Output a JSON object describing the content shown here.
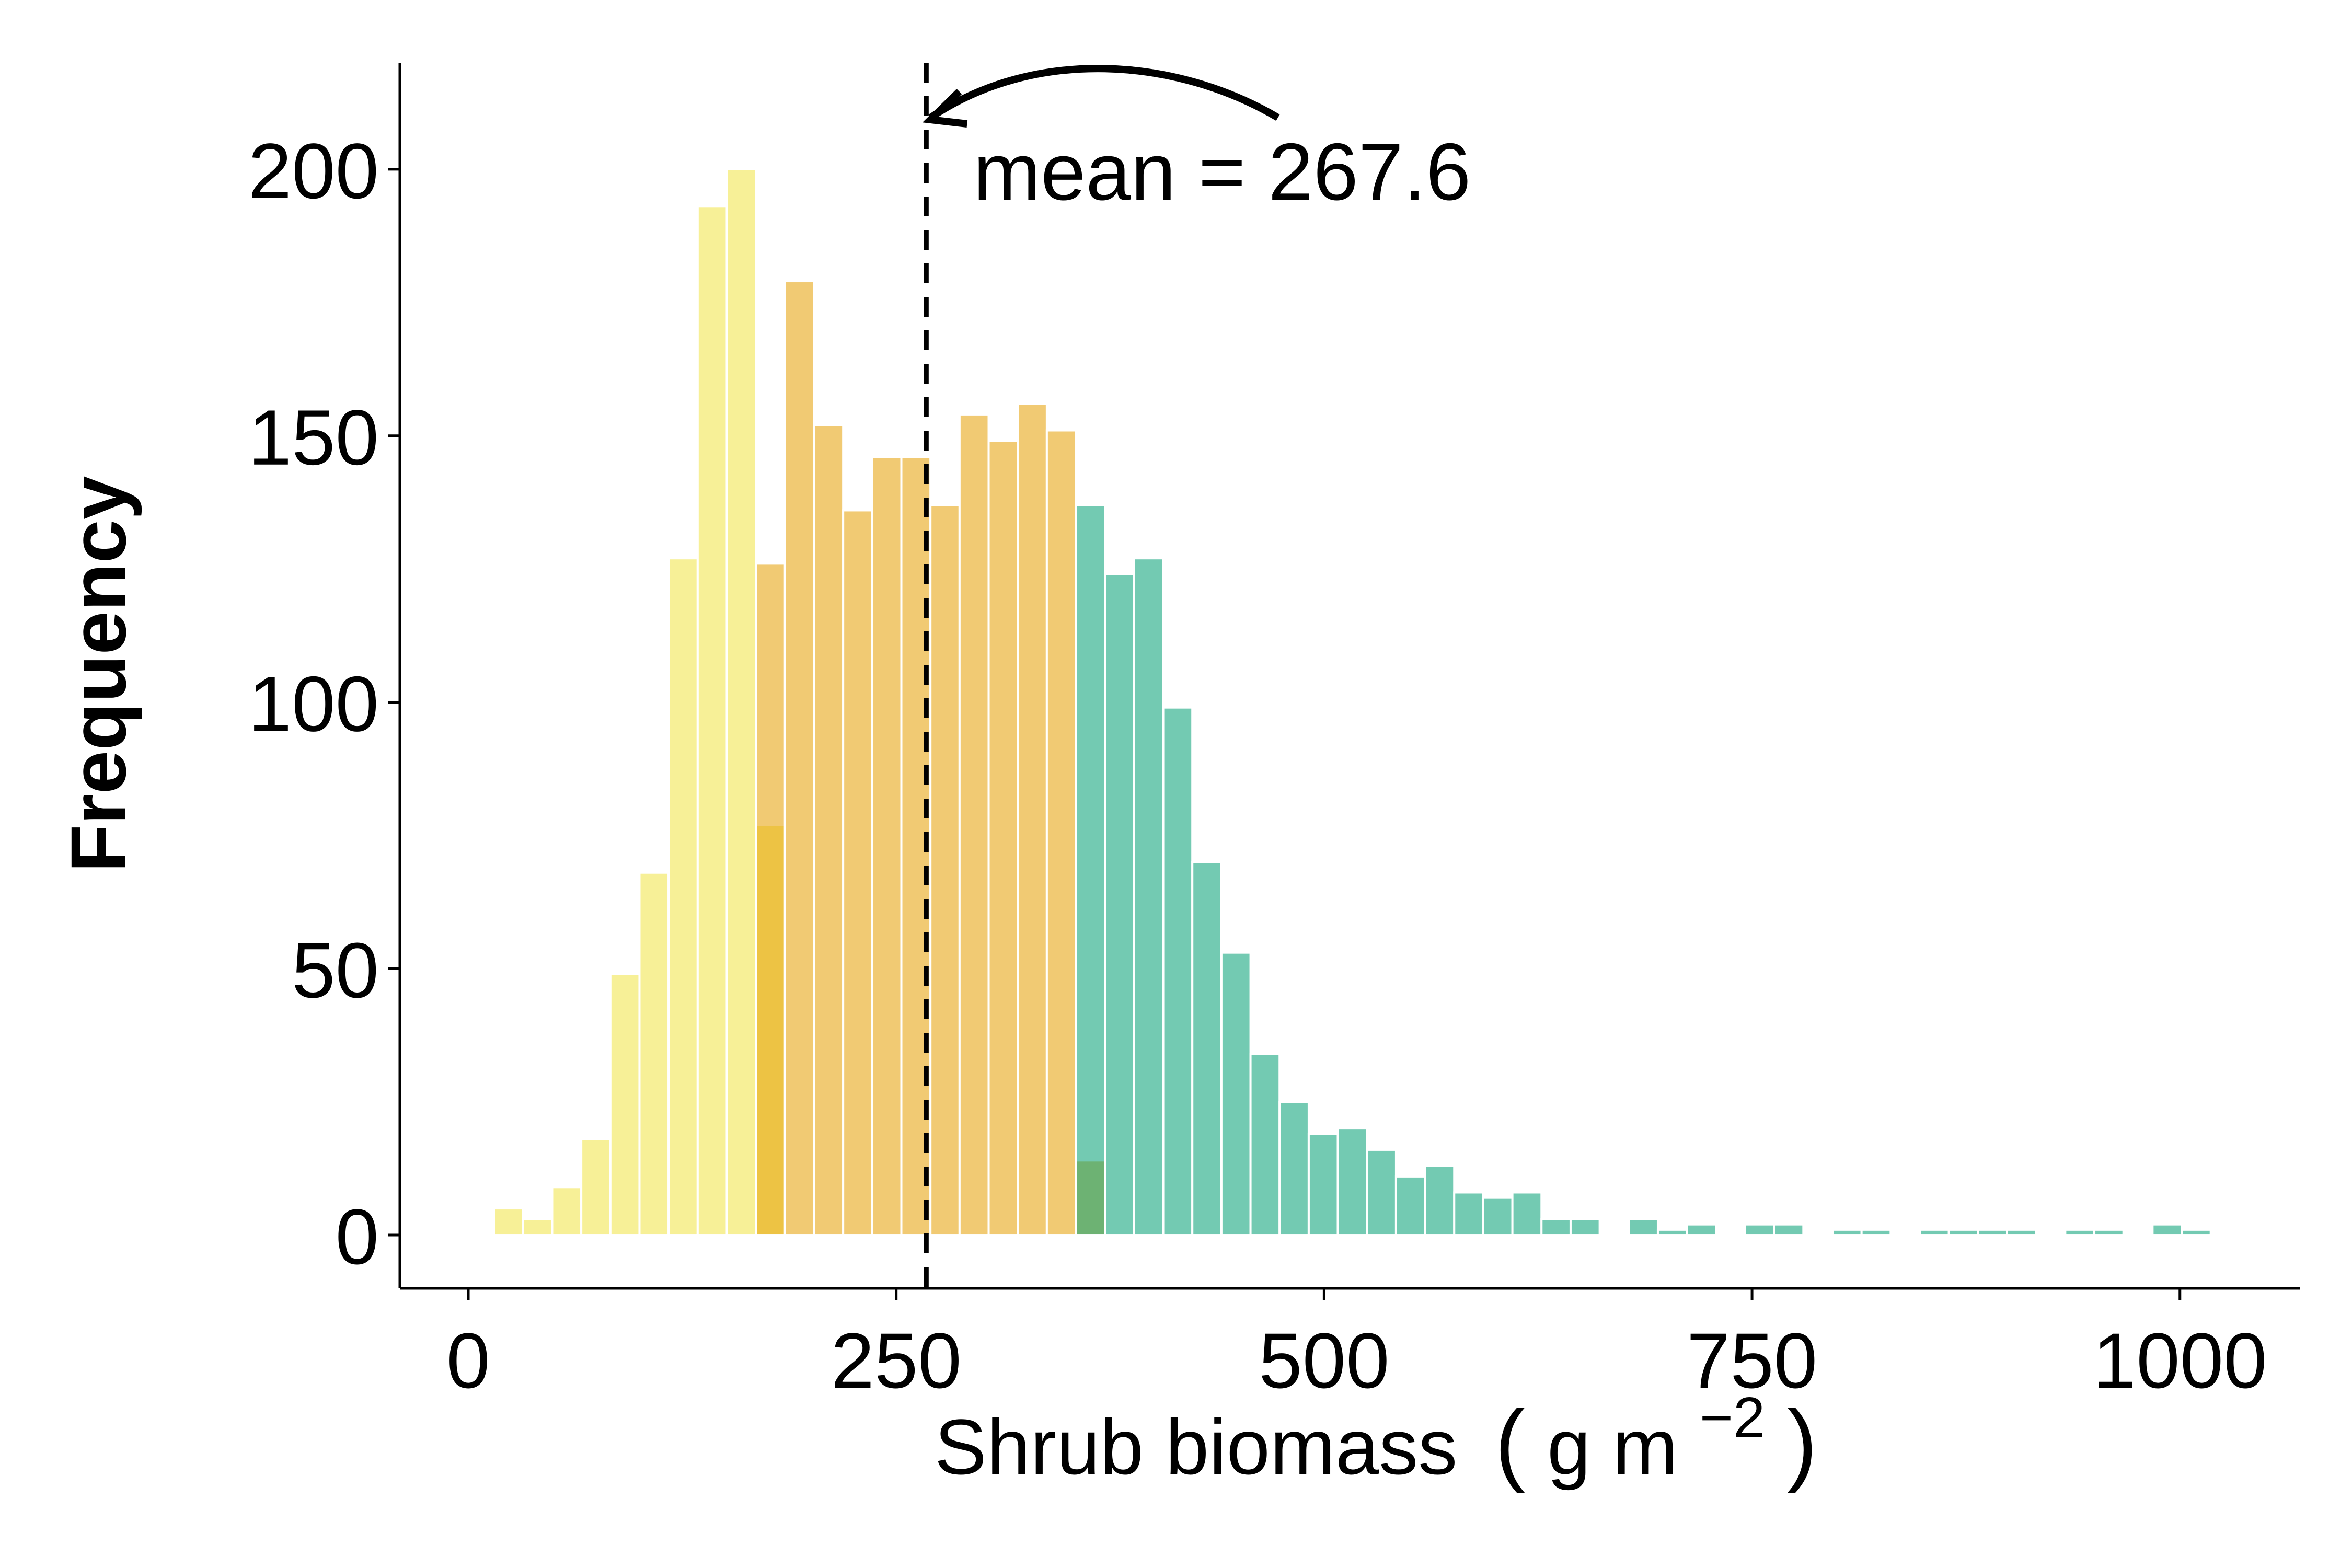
{
  "chart_data": {
    "type": "bar",
    "subtype": "overlapping histogram",
    "xlabel": "Shrub biomass",
    "xlabel_unit_open": "(",
    "xlabel_unit_base": "g m",
    "xlabel_unit_exp": "−2",
    "xlabel_unit_close": ")",
    "ylabel": "Frequency",
    "xlim": [
      -40,
      1070
    ],
    "ylim": [
      -10,
      220
    ],
    "x_ticks": [
      0,
      250,
      500,
      750,
      1000
    ],
    "y_ticks": [
      0,
      50,
      100,
      150,
      200
    ],
    "x_tick_labels": [
      "0",
      "250",
      "500",
      "750",
      "1000"
    ],
    "y_tick_labels": [
      "0",
      "50",
      "100",
      "150",
      "200"
    ],
    "grid": false,
    "bin_width": 17,
    "series": [
      {
        "group": "low",
        "color": "#F0E442",
        "bins": [
          {
            "x": 15,
            "y": 5
          },
          {
            "x": 32,
            "y": 3
          },
          {
            "x": 49,
            "y": 9
          },
          {
            "x": 66,
            "y": 18
          },
          {
            "x": 83,
            "y": 49
          },
          {
            "x": 100,
            "y": 68
          },
          {
            "x": 117,
            "y": 127
          },
          {
            "x": 134,
            "y": 193
          },
          {
            "x": 151,
            "y": 200
          },
          {
            "x": 168,
            "y": 77
          }
        ]
      },
      {
        "group": "medium",
        "color": "#E69F00",
        "bins": [
          {
            "x": 168,
            "y": 126
          },
          {
            "x": 185,
            "y": 179
          },
          {
            "x": 202,
            "y": 152
          },
          {
            "x": 219,
            "y": 136
          },
          {
            "x": 236,
            "y": 146
          },
          {
            "x": 253,
            "y": 146
          },
          {
            "x": 270,
            "y": 137
          },
          {
            "x": 287,
            "y": 154
          },
          {
            "x": 304,
            "y": 149
          },
          {
            "x": 321,
            "y": 156
          },
          {
            "x": 338,
            "y": 151
          },
          {
            "x": 355,
            "y": 14
          }
        ]
      },
      {
        "group": "high",
        "color": "#009E73",
        "bins": [
          {
            "x": 355,
            "y": 137
          },
          {
            "x": 372,
            "y": 124
          },
          {
            "x": 389,
            "y": 127
          },
          {
            "x": 406,
            "y": 99
          },
          {
            "x": 423,
            "y": 70
          },
          {
            "x": 440,
            "y": 53
          },
          {
            "x": 457,
            "y": 34
          },
          {
            "x": 474,
            "y": 25
          },
          {
            "x": 491,
            "y": 19
          },
          {
            "x": 508,
            "y": 20
          },
          {
            "x": 525,
            "y": 16
          },
          {
            "x": 542,
            "y": 11
          },
          {
            "x": 559,
            "y": 13
          },
          {
            "x": 576,
            "y": 8
          },
          {
            "x": 593,
            "y": 7
          },
          {
            "x": 610,
            "y": 8
          },
          {
            "x": 627,
            "y": 3
          },
          {
            "x": 644,
            "y": 3
          },
          {
            "x": 678,
            "y": 3
          },
          {
            "x": 695,
            "y": 1
          },
          {
            "x": 712,
            "y": 2
          },
          {
            "x": 746,
            "y": 2
          },
          {
            "x": 763,
            "y": 2
          },
          {
            "x": 797,
            "y": 1
          },
          {
            "x": 814,
            "y": 1
          },
          {
            "x": 848,
            "y": 1
          },
          {
            "x": 865,
            "y": 1
          },
          {
            "x": 882,
            "y": 1
          },
          {
            "x": 899,
            "y": 1
          },
          {
            "x": 933,
            "y": 1
          },
          {
            "x": 950,
            "y": 1
          },
          {
            "x": 984,
            "y": 2
          },
          {
            "x": 1001,
            "y": 1
          }
        ]
      }
    ],
    "mean_line": {
      "x": 267.6,
      "style": "dashed",
      "color": "#000000"
    },
    "annotation": {
      "text": "mean = 267.6"
    }
  }
}
